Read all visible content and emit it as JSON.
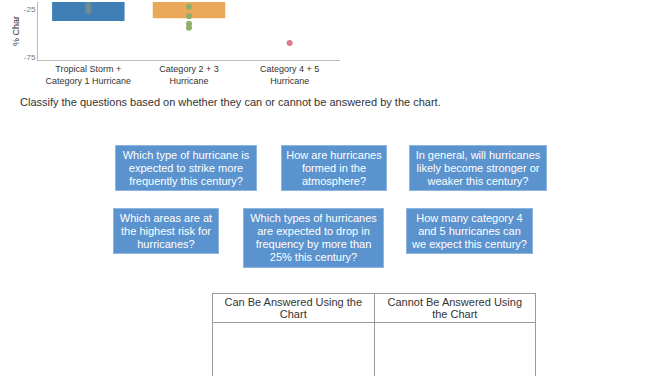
{
  "chart_data": {
    "type": "bar",
    "ylabel": "% Char",
    "categories": [
      "Tropical Storm +\nCategory 1 Hurricane",
      "Category 2 + 3\nHurricane",
      "Category 4 + 5\nHurricane"
    ],
    "values": [
      -37,
      -34,
      null
    ],
    "colors": [
      "#3f7fb6",
      "#eaa85a",
      "#cccccc"
    ],
    "points": [
      {
        "category": 0,
        "values": [
          -20,
          -24,
          -27
        ],
        "color": "#6f8c96"
      },
      {
        "category": 1,
        "values": [
          -22,
          -32,
          -40,
          -44
        ],
        "color": "#8fae6a"
      },
      {
        "category": 2,
        "values": [
          -60
        ],
        "color": "#e07a8a"
      }
    ],
    "ylim": [
      -78,
      -17
    ],
    "yticks": [
      -25,
      -75
    ],
    "grid": false
  },
  "instructions": "Classify the questions based on whether they can or cannot be answered by the chart.",
  "cards": [
    "Which type of hurricane is expected to strike more frequently this century?",
    "How are hurricanes formed in the atmosphere?",
    "In general, will hurricanes likely become stronger or weaker this century?",
    "Which areas are at the highest risk for hurricanes?",
    "Which types of hurricanes are expected to drop in frequency by more than 25% this century?",
    "How many category 4 and 5 hurricanes can we expect this century?"
  ],
  "table": {
    "headers": [
      "Can Be Answered Using the Chart",
      "Cannot Be Answered Using the Chart"
    ]
  }
}
